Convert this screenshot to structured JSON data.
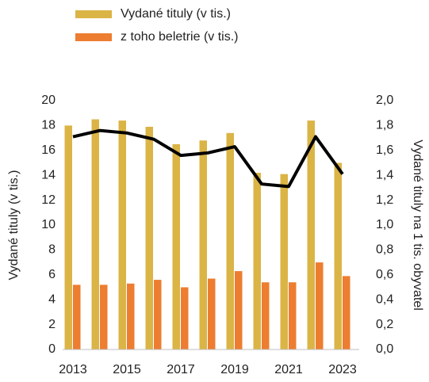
{
  "chart_data": {
    "type": "bar",
    "categories": [
      "2013",
      null,
      "2015",
      null,
      "2017",
      null,
      "2019",
      null,
      "2021",
      null,
      "2023"
    ],
    "series": [
      {
        "name": "Vydané tituly (v tis.)",
        "color": "#dbb446",
        "type": "bar",
        "values": [
          18.0,
          18.5,
          18.4,
          17.9,
          16.5,
          16.8,
          17.4,
          14.2,
          14.1,
          18.4,
          15.0
        ]
      },
      {
        "name": "z toho beletrie (v tis.)",
        "color": "#ed7d31",
        "type": "bar",
        "values": [
          5.2,
          5.2,
          5.3,
          5.6,
          5.0,
          5.7,
          6.3,
          5.4,
          5.4,
          7.0,
          5.9
        ]
      },
      {
        "color": "#000000",
        "type": "line",
        "axis": "y2",
        "values": [
          1.71,
          1.76,
          1.74,
          1.69,
          1.56,
          1.58,
          1.63,
          1.33,
          1.31,
          1.71,
          1.41
        ]
      }
    ],
    "y_label": "Vydané tituly (v tis.)",
    "y2_label": "Vydané tituly na 1 tis. obyvatel",
    "ylim": [
      0,
      20
    ],
    "yticks": [
      0,
      2,
      4,
      6,
      8,
      10,
      12,
      14,
      16,
      18,
      20
    ],
    "y2lim": [
      0,
      2
    ],
    "y2ticks": [
      {
        "value": 0,
        "label": "0,0"
      },
      {
        "value": 0.2,
        "label": "0,2"
      },
      {
        "value": 0.4,
        "label": "0,4"
      },
      {
        "value": 0.6,
        "label": "0,6"
      },
      {
        "value": 0.8,
        "label": "0,8"
      },
      {
        "value": 1.0,
        "label": "1,0"
      },
      {
        "value": 1.2,
        "label": "1,2"
      },
      {
        "value": 1.4,
        "label": "1,4"
      },
      {
        "value": 1.6,
        "label": "1,6"
      },
      {
        "value": 1.8,
        "label": "1,8"
      },
      {
        "value": 2.0,
        "label": "2,0"
      }
    ],
    "legend": "top"
  }
}
